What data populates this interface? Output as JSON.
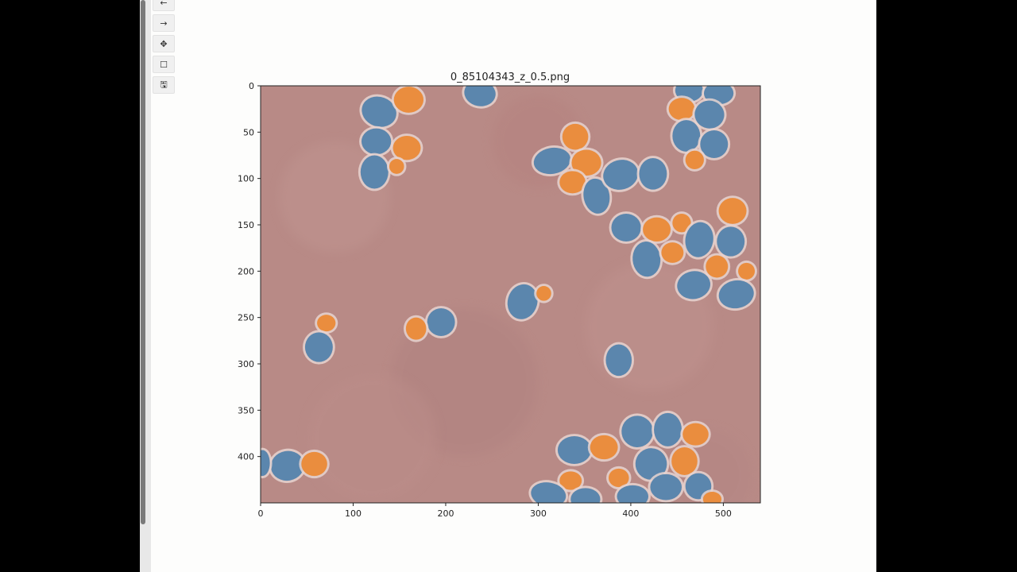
{
  "toolbar": {
    "buttons": [
      {
        "name": "back-button",
        "icon": "back-arrow-icon",
        "glyph": "←"
      },
      {
        "name": "forward-button",
        "icon": "forward-arrow-icon",
        "glyph": "→"
      },
      {
        "name": "pan-button",
        "icon": "pan-icon",
        "glyph": "✥"
      },
      {
        "name": "zoom-rect-button",
        "icon": "zoom-rectangle-icon",
        "glyph": "☐"
      },
      {
        "name": "save-button",
        "icon": "save-icon",
        "glyph": "🖫"
      }
    ]
  },
  "figure": {
    "title": "0_85104343_z_0.5.png",
    "x_ticks": [
      0,
      100,
      200,
      300,
      400,
      500
    ],
    "y_ticks": [
      0,
      50,
      100,
      150,
      200,
      250,
      300,
      350,
      400
    ],
    "x_range": [
      0,
      540
    ],
    "y_range": [
      0,
      450
    ],
    "background_color": "#b88a86",
    "colors": {
      "blue_cell": "#5b86ad",
      "orange_cell": "#ea8d3e",
      "cell_halo": "#e6d4d0"
    },
    "cells": [
      {
        "t": "b",
        "x": 128,
        "y": 28,
        "rx": 19,
        "ry": 16,
        "r": 20
      },
      {
        "t": "o",
        "x": 160,
        "y": 15,
        "rx": 16,
        "ry": 14,
        "r": 0
      },
      {
        "t": "b",
        "x": 125,
        "y": 60,
        "rx": 16,
        "ry": 14,
        "r": 0
      },
      {
        "t": "o",
        "x": 158,
        "y": 67,
        "rx": 15,
        "ry": 13,
        "r": 0
      },
      {
        "t": "b",
        "x": 123,
        "y": 93,
        "rx": 15,
        "ry": 18,
        "r": 0
      },
      {
        "t": "o",
        "x": 147,
        "y": 87,
        "rx": 8,
        "ry": 8,
        "r": 0
      },
      {
        "t": "b",
        "x": 237,
        "y": 8,
        "rx": 17,
        "ry": 14,
        "r": 10
      },
      {
        "t": "o",
        "x": 340,
        "y": 55,
        "rx": 14,
        "ry": 14,
        "r": 0
      },
      {
        "t": "b",
        "x": 315,
        "y": 81,
        "rx": 20,
        "ry": 14,
        "r": -10
      },
      {
        "t": "o",
        "x": 352,
        "y": 83,
        "rx": 16,
        "ry": 14,
        "r": 0
      },
      {
        "t": "o",
        "x": 337,
        "y": 104,
        "rx": 14,
        "ry": 12,
        "r": 0
      },
      {
        "t": "b",
        "x": 363,
        "y": 119,
        "rx": 14,
        "ry": 19,
        "r": -10
      },
      {
        "t": "b",
        "x": 389,
        "y": 96,
        "rx": 19,
        "ry": 16,
        "r": -15
      },
      {
        "t": "b",
        "x": 424,
        "y": 95,
        "rx": 15,
        "ry": 17,
        "r": 0
      },
      {
        "t": "b",
        "x": 463,
        "y": 5,
        "rx": 15,
        "ry": 12,
        "r": 0
      },
      {
        "t": "b",
        "x": 495,
        "y": 8,
        "rx": 16,
        "ry": 12,
        "r": 0
      },
      {
        "t": "o",
        "x": 455,
        "y": 25,
        "rx": 14,
        "ry": 12,
        "r": 0
      },
      {
        "t": "b",
        "x": 485,
        "y": 31,
        "rx": 16,
        "ry": 15,
        "r": 10
      },
      {
        "t": "b",
        "x": 460,
        "y": 54,
        "rx": 15,
        "ry": 17,
        "r": 0
      },
      {
        "t": "b",
        "x": 490,
        "y": 63,
        "rx": 15,
        "ry": 15,
        "r": 0
      },
      {
        "t": "o",
        "x": 469,
        "y": 80,
        "rx": 10,
        "ry": 10,
        "r": 0
      },
      {
        "t": "o",
        "x": 510,
        "y": 135,
        "rx": 15,
        "ry": 14,
        "r": 0
      },
      {
        "t": "b",
        "x": 395,
        "y": 153,
        "rx": 16,
        "ry": 15,
        "r": 0
      },
      {
        "t": "o",
        "x": 428,
        "y": 155,
        "rx": 15,
        "ry": 13,
        "r": 0
      },
      {
        "t": "o",
        "x": 455,
        "y": 148,
        "rx": 10,
        "ry": 10,
        "r": 0
      },
      {
        "t": "b",
        "x": 474,
        "y": 166,
        "rx": 15,
        "ry": 19,
        "r": 10
      },
      {
        "t": "b",
        "x": 508,
        "y": 168,
        "rx": 15,
        "ry": 16,
        "r": 0
      },
      {
        "t": "b",
        "x": 417,
        "y": 187,
        "rx": 15,
        "ry": 19,
        "r": -5
      },
      {
        "t": "o",
        "x": 445,
        "y": 180,
        "rx": 12,
        "ry": 11,
        "r": 0
      },
      {
        "t": "o",
        "x": 493,
        "y": 195,
        "rx": 12,
        "ry": 12,
        "r": 0
      },
      {
        "t": "o",
        "x": 525,
        "y": 200,
        "rx": 9,
        "ry": 9,
        "r": 0
      },
      {
        "t": "b",
        "x": 468,
        "y": 215,
        "rx": 18,
        "ry": 15,
        "r": -10
      },
      {
        "t": "b",
        "x": 514,
        "y": 225,
        "rx": 19,
        "ry": 15,
        "r": -10
      },
      {
        "t": "b",
        "x": 283,
        "y": 233,
        "rx": 16,
        "ry": 19,
        "r": 15
      },
      {
        "t": "o",
        "x": 306,
        "y": 224,
        "rx": 8,
        "ry": 8,
        "r": 0
      },
      {
        "t": "b",
        "x": 195,
        "y": 255,
        "rx": 15,
        "ry": 15,
        "r": 0
      },
      {
        "t": "o",
        "x": 168,
        "y": 262,
        "rx": 11,
        "ry": 12,
        "r": 0
      },
      {
        "t": "o",
        "x": 71,
        "y": 256,
        "rx": 10,
        "ry": 9,
        "r": 0
      },
      {
        "t": "b",
        "x": 63,
        "y": 282,
        "rx": 15,
        "ry": 16,
        "r": 0
      },
      {
        "t": "b",
        "x": 387,
        "y": 296,
        "rx": 14,
        "ry": 17,
        "r": 0
      },
      {
        "t": "b",
        "x": 29,
        "y": 410,
        "rx": 18,
        "ry": 16,
        "r": -10
      },
      {
        "t": "o",
        "x": 58,
        "y": 408,
        "rx": 14,
        "ry": 13,
        "r": 0
      },
      {
        "t": "b",
        "x": 2,
        "y": 407,
        "rx": 8,
        "ry": 14,
        "r": 0
      },
      {
        "t": "b",
        "x": 339,
        "y": 393,
        "rx": 18,
        "ry": 15,
        "r": 0
      },
      {
        "t": "o",
        "x": 371,
        "y": 390,
        "rx": 15,
        "ry": 13,
        "r": 0
      },
      {
        "t": "b",
        "x": 407,
        "y": 373,
        "rx": 17,
        "ry": 17,
        "r": -20
      },
      {
        "t": "b",
        "x": 440,
        "y": 371,
        "rx": 15,
        "ry": 18,
        "r": 0
      },
      {
        "t": "o",
        "x": 470,
        "y": 376,
        "rx": 14,
        "ry": 12,
        "r": 0
      },
      {
        "t": "b",
        "x": 422,
        "y": 408,
        "rx": 17,
        "ry": 17,
        "r": -20
      },
      {
        "t": "o",
        "x": 458,
        "y": 405,
        "rx": 14,
        "ry": 15,
        "r": 0
      },
      {
        "t": "o",
        "x": 335,
        "y": 426,
        "rx": 12,
        "ry": 10,
        "r": 0
      },
      {
        "t": "o",
        "x": 387,
        "y": 423,
        "rx": 11,
        "ry": 10,
        "r": 0
      },
      {
        "t": "b",
        "x": 438,
        "y": 433,
        "rx": 17,
        "ry": 14,
        "r": 0
      },
      {
        "t": "b",
        "x": 473,
        "y": 432,
        "rx": 14,
        "ry": 14,
        "r": 0
      },
      {
        "t": "b",
        "x": 311,
        "y": 441,
        "rx": 19,
        "ry": 13,
        "r": 10
      },
      {
        "t": "b",
        "x": 351,
        "y": 446,
        "rx": 16,
        "ry": 12,
        "r": 0
      },
      {
        "t": "b",
        "x": 402,
        "y": 443,
        "rx": 17,
        "ry": 12,
        "r": 0
      },
      {
        "t": "o",
        "x": 488,
        "y": 446,
        "rx": 10,
        "ry": 8,
        "r": 0
      }
    ]
  }
}
